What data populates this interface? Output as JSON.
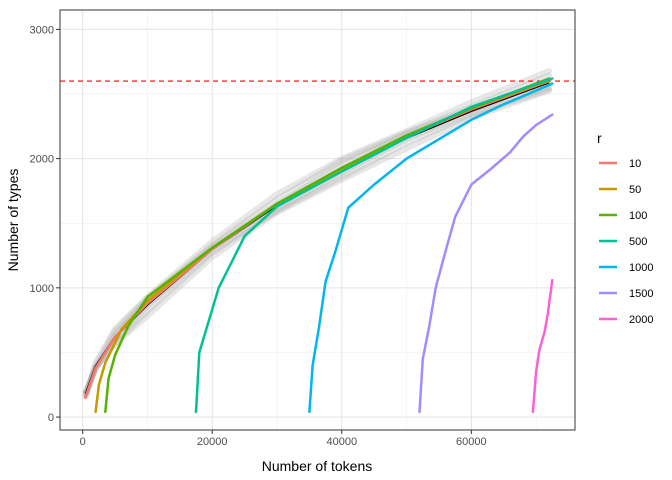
{
  "chart_data": {
    "type": "line",
    "xlabel": "Number of tokens",
    "ylabel": "Number of types",
    "xlim": [
      -3500,
      76000
    ],
    "ylim": [
      -100,
      3150
    ],
    "x_ticks": [
      0,
      20000,
      40000,
      60000
    ],
    "x_tick_labels": [
      "0",
      "20000",
      "40000",
      "60000"
    ],
    "y_ticks": [
      0,
      1000,
      2000,
      3000
    ],
    "y_tick_labels": [
      "0",
      "1000",
      "2000",
      "3000"
    ],
    "grid": true,
    "legend_title": "r",
    "legend_position": "right",
    "reference_line": {
      "y": 2600,
      "color": "#ff0000",
      "style": "dashed"
    },
    "mean_curve": {
      "color": "#000000",
      "x": [
        500,
        2000,
        5000,
        10000,
        20000,
        30000,
        40000,
        50000,
        60000,
        72000
      ],
      "y": [
        180,
        390,
        620,
        870,
        1300,
        1640,
        1920,
        2160,
        2370,
        2590
      ]
    },
    "series": [
      {
        "name": "10",
        "color": "#F8766D",
        "x": [
          400,
          2000,
          5000,
          10000,
          20000,
          30000,
          40000,
          50000,
          60000,
          72000
        ],
        "y": [
          150,
          380,
          620,
          880,
          1300,
          1650,
          1920,
          2170,
          2380,
          2600
        ]
      },
      {
        "name": "50",
        "color": "#C49A00",
        "x": [
          2000,
          2500,
          3500,
          6000,
          10000,
          20000,
          30000,
          40000,
          50000,
          60000,
          72000
        ],
        "y": [
          40,
          250,
          420,
          680,
          900,
          1310,
          1650,
          1920,
          2170,
          2390,
          2600
        ]
      },
      {
        "name": "100",
        "color": "#53B400",
        "x": [
          3500,
          4000,
          5000,
          7000,
          10000,
          20000,
          30000,
          40000,
          50000,
          60000,
          72000
        ],
        "y": [
          40,
          300,
          480,
          700,
          930,
          1310,
          1650,
          1930,
          2180,
          2390,
          2620
        ]
      },
      {
        "name": "500",
        "color": "#00C094",
        "x": [
          17500,
          18000,
          19500,
          21000,
          23000,
          25000,
          30000,
          40000,
          50000,
          60000,
          72500
        ],
        "y": [
          40,
          500,
          750,
          1000,
          1200,
          1400,
          1630,
          1900,
          2160,
          2400,
          2620
        ]
      },
      {
        "name": "1000",
        "color": "#00B6EB",
        "x": [
          35000,
          35500,
          36500,
          37500,
          39000,
          41000,
          45000,
          50000,
          55000,
          60000,
          65000,
          72500
        ],
        "y": [
          40,
          400,
          700,
          1050,
          1280,
          1620,
          1800,
          2000,
          2150,
          2300,
          2420,
          2580
        ]
      },
      {
        "name": "1500",
        "color": "#A58AFF",
        "x": [
          52000,
          52500,
          53500,
          54500,
          56000,
          57500,
          60000,
          63000,
          66000,
          68000,
          70000,
          72500
        ],
        "y": [
          40,
          450,
          700,
          1000,
          1280,
          1550,
          1800,
          1920,
          2050,
          2170,
          2260,
          2340
        ]
      },
      {
        "name": "2000",
        "color": "#FB61D7",
        "x": [
          69500,
          70000,
          70500,
          71300,
          71800,
          72500
        ],
        "y": [
          40,
          350,
          520,
          660,
          800,
          1060
        ]
      }
    ]
  }
}
